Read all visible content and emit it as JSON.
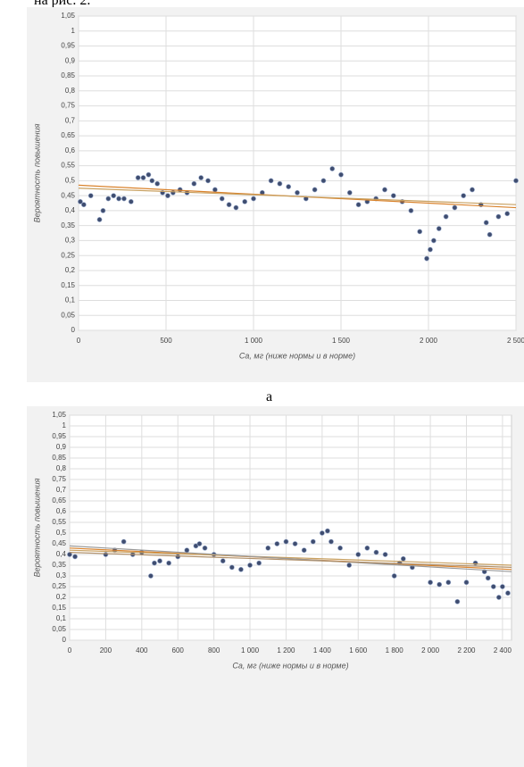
{
  "text_top": "на рис. 2.",
  "caption_a": "а",
  "chart_data": [
    {
      "type": "scatter",
      "x_label": "Ca, мг (ниже нормы и в норме)",
      "y_label": "Вероятность повышения",
      "xlim": [
        0,
        2500
      ],
      "ylim": [
        0,
        1.05
      ],
      "grid": true,
      "xticks": [
        0,
        500,
        {
          "value": 1000,
          "label": "1 000"
        },
        {
          "value": 1500,
          "label": "1 500"
        },
        {
          "value": 2000,
          "label": "2 000"
        },
        {
          "value": 2500,
          "label": "2 500"
        }
      ],
      "yticks": [
        0,
        {
          "value": 0.05,
          "label": "0,05"
        },
        {
          "value": 0.1,
          "label": "0,1"
        },
        {
          "value": 0.15,
          "label": "0,15"
        },
        {
          "value": 0.2,
          "label": "0,2"
        },
        {
          "value": 0.25,
          "label": "0,25"
        },
        {
          "value": 0.3,
          "label": "0,3"
        },
        {
          "value": 0.35,
          "label": "0,35"
        },
        {
          "value": 0.4,
          "label": "0,4"
        },
        {
          "value": 0.45,
          "label": "0,45"
        },
        {
          "value": 0.5,
          "label": "0,5"
        },
        {
          "value": 0.55,
          "label": "0,55"
        },
        {
          "value": 0.6,
          "label": "0,6"
        },
        {
          "value": 0.65,
          "label": "0,65"
        },
        {
          "value": 0.7,
          "label": "0,7"
        },
        {
          "value": 0.75,
          "label": "0,75"
        },
        {
          "value": 0.8,
          "label": "0,8"
        },
        {
          "value": 0.85,
          "label": "0,85"
        },
        {
          "value": 0.9,
          "label": "0,9"
        },
        {
          "value": 0.95,
          "label": "0,95"
        },
        1,
        {
          "value": 1.05,
          "label": "1,05"
        }
      ],
      "x": [
        10,
        30,
        70,
        120,
        140,
        170,
        200,
        230,
        260,
        300,
        340,
        370,
        400,
        420,
        450,
        480,
        510,
        540,
        580,
        620,
        660,
        700,
        740,
        780,
        820,
        860,
        900,
        950,
        1000,
        1050,
        1100,
        1150,
        1200,
        1250,
        1300,
        1350,
        1400,
        1450,
        1500,
        1550,
        1600,
        1650,
        1700,
        1750,
        1800,
        1850,
        1900,
        1950,
        1990,
        2010,
        2030,
        2060,
        2100,
        2150,
        2200,
        2250,
        2300,
        2330,
        2350,
        2400,
        2450,
        2500
      ],
      "series": [
        {
          "color": "#3f4d70",
          "values": [
            0.43,
            0.42,
            0.45,
            0.37,
            0.4,
            0.44,
            0.45,
            0.44,
            0.44,
            0.43,
            0.51,
            0.51,
            0.52,
            0.5,
            0.49,
            0.46,
            0.45,
            0.46,
            0.47,
            0.46,
            0.49,
            0.51,
            0.5,
            0.47,
            0.44,
            0.42,
            0.41,
            0.43,
            0.44,
            0.46,
            0.5,
            0.49,
            0.48,
            0.46,
            0.44,
            0.47,
            0.5,
            0.54,
            0.52,
            0.46,
            0.42,
            0.43,
            0.44,
            0.47,
            0.45,
            0.43,
            0.4,
            0.33,
            0.24,
            0.27,
            0.3,
            0.34,
            0.38,
            0.41,
            0.45,
            0.47,
            0.42,
            0.36,
            0.32,
            0.38,
            0.39,
            0.5
          ]
        }
      ],
      "lines": [
        {
          "color": "#d9822b",
          "x": [
            0,
            2500
          ],
          "values": [
            0.485,
            0.41
          ]
        },
        {
          "color": "#c8a060",
          "x": [
            0,
            2500
          ],
          "values": [
            0.475,
            0.42
          ]
        }
      ]
    },
    {
      "type": "scatter",
      "x_label": "Ca, мг (ниже нормы и в норме)",
      "y_label": "Вероятность повышения",
      "xlim": [
        0,
        2450
      ],
      "ylim": [
        0,
        1.05
      ],
      "grid": true,
      "xticks": [
        0,
        200,
        400,
        600,
        800,
        {
          "value": 1000,
          "label": "1 000"
        },
        {
          "value": 1200,
          "label": "1 200"
        },
        {
          "value": 1400,
          "label": "1 400"
        },
        {
          "value": 1600,
          "label": "1 600"
        },
        {
          "value": 1800,
          "label": "1 800"
        },
        {
          "value": 2000,
          "label": "2 000"
        },
        {
          "value": 2200,
          "label": "2 200"
        },
        {
          "value": 2400,
          "label": "2 400"
        }
      ],
      "yticks": [
        0,
        {
          "value": 0.05,
          "label": "0,05"
        },
        {
          "value": 0.1,
          "label": "0,1"
        },
        {
          "value": 0.15,
          "label": "0,15"
        },
        {
          "value": 0.2,
          "label": "0,2"
        },
        {
          "value": 0.25,
          "label": "0,25"
        },
        {
          "value": 0.3,
          "label": "0,3"
        },
        {
          "value": 0.35,
          "label": "0,35"
        },
        {
          "value": 0.4,
          "label": "0,4"
        },
        {
          "value": 0.45,
          "label": "0,45"
        },
        {
          "value": 0.5,
          "label": "0,5"
        },
        {
          "value": 0.55,
          "label": "0,55"
        },
        {
          "value": 0.6,
          "label": "0,6"
        },
        {
          "value": 0.65,
          "label": "0,65"
        },
        {
          "value": 0.7,
          "label": "0,7"
        },
        {
          "value": 0.75,
          "label": "0,75"
        },
        {
          "value": 0.8,
          "label": "0,8"
        },
        {
          "value": 0.85,
          "label": "0,85"
        },
        {
          "value": 0.9,
          "label": "0,9"
        },
        {
          "value": 0.95,
          "label": "0,95"
        },
        1,
        {
          "value": 1.05,
          "label": "1,05"
        }
      ],
      "x": [
        0,
        30,
        200,
        250,
        300,
        350,
        400,
        450,
        470,
        500,
        550,
        600,
        650,
        700,
        720,
        750,
        800,
        850,
        900,
        950,
        1000,
        1050,
        1100,
        1150,
        1200,
        1250,
        1300,
        1350,
        1400,
        1430,
        1450,
        1500,
        1550,
        1600,
        1650,
        1700,
        1750,
        1800,
        1830,
        1850,
        1900,
        2000,
        2050,
        2100,
        2150,
        2200,
        2250,
        2300,
        2320,
        2350,
        2380,
        2400,
        2430
      ],
      "series": [
        {
          "color": "#3f4d70",
          "values": [
            0.4,
            0.39,
            0.4,
            0.42,
            0.46,
            0.4,
            0.41,
            0.3,
            0.36,
            0.37,
            0.36,
            0.39,
            0.42,
            0.44,
            0.45,
            0.43,
            0.4,
            0.37,
            0.34,
            0.33,
            0.35,
            0.36,
            0.43,
            0.45,
            0.46,
            0.45,
            0.42,
            0.46,
            0.5,
            0.51,
            0.46,
            0.43,
            0.35,
            0.4,
            0.43,
            0.41,
            0.4,
            0.3,
            0.36,
            0.38,
            0.34,
            0.27,
            0.26,
            0.27,
            0.18,
            0.27,
            0.36,
            0.32,
            0.29,
            0.25,
            0.2,
            0.25,
            0.22
          ]
        }
      ],
      "lines": [
        {
          "color": "#d9822b",
          "x": [
            0,
            2450
          ],
          "values": [
            0.43,
            0.33
          ]
        },
        {
          "color": "#c8a060",
          "x": [
            0,
            2450
          ],
          "values": [
            0.42,
            0.35
          ]
        },
        {
          "color": "#999999",
          "x": [
            0,
            2450
          ],
          "values": [
            0.44,
            0.32
          ]
        },
        {
          "color": "#b0906a",
          "x": [
            0,
            2450
          ],
          "values": [
            0.41,
            0.34
          ]
        }
      ]
    }
  ]
}
